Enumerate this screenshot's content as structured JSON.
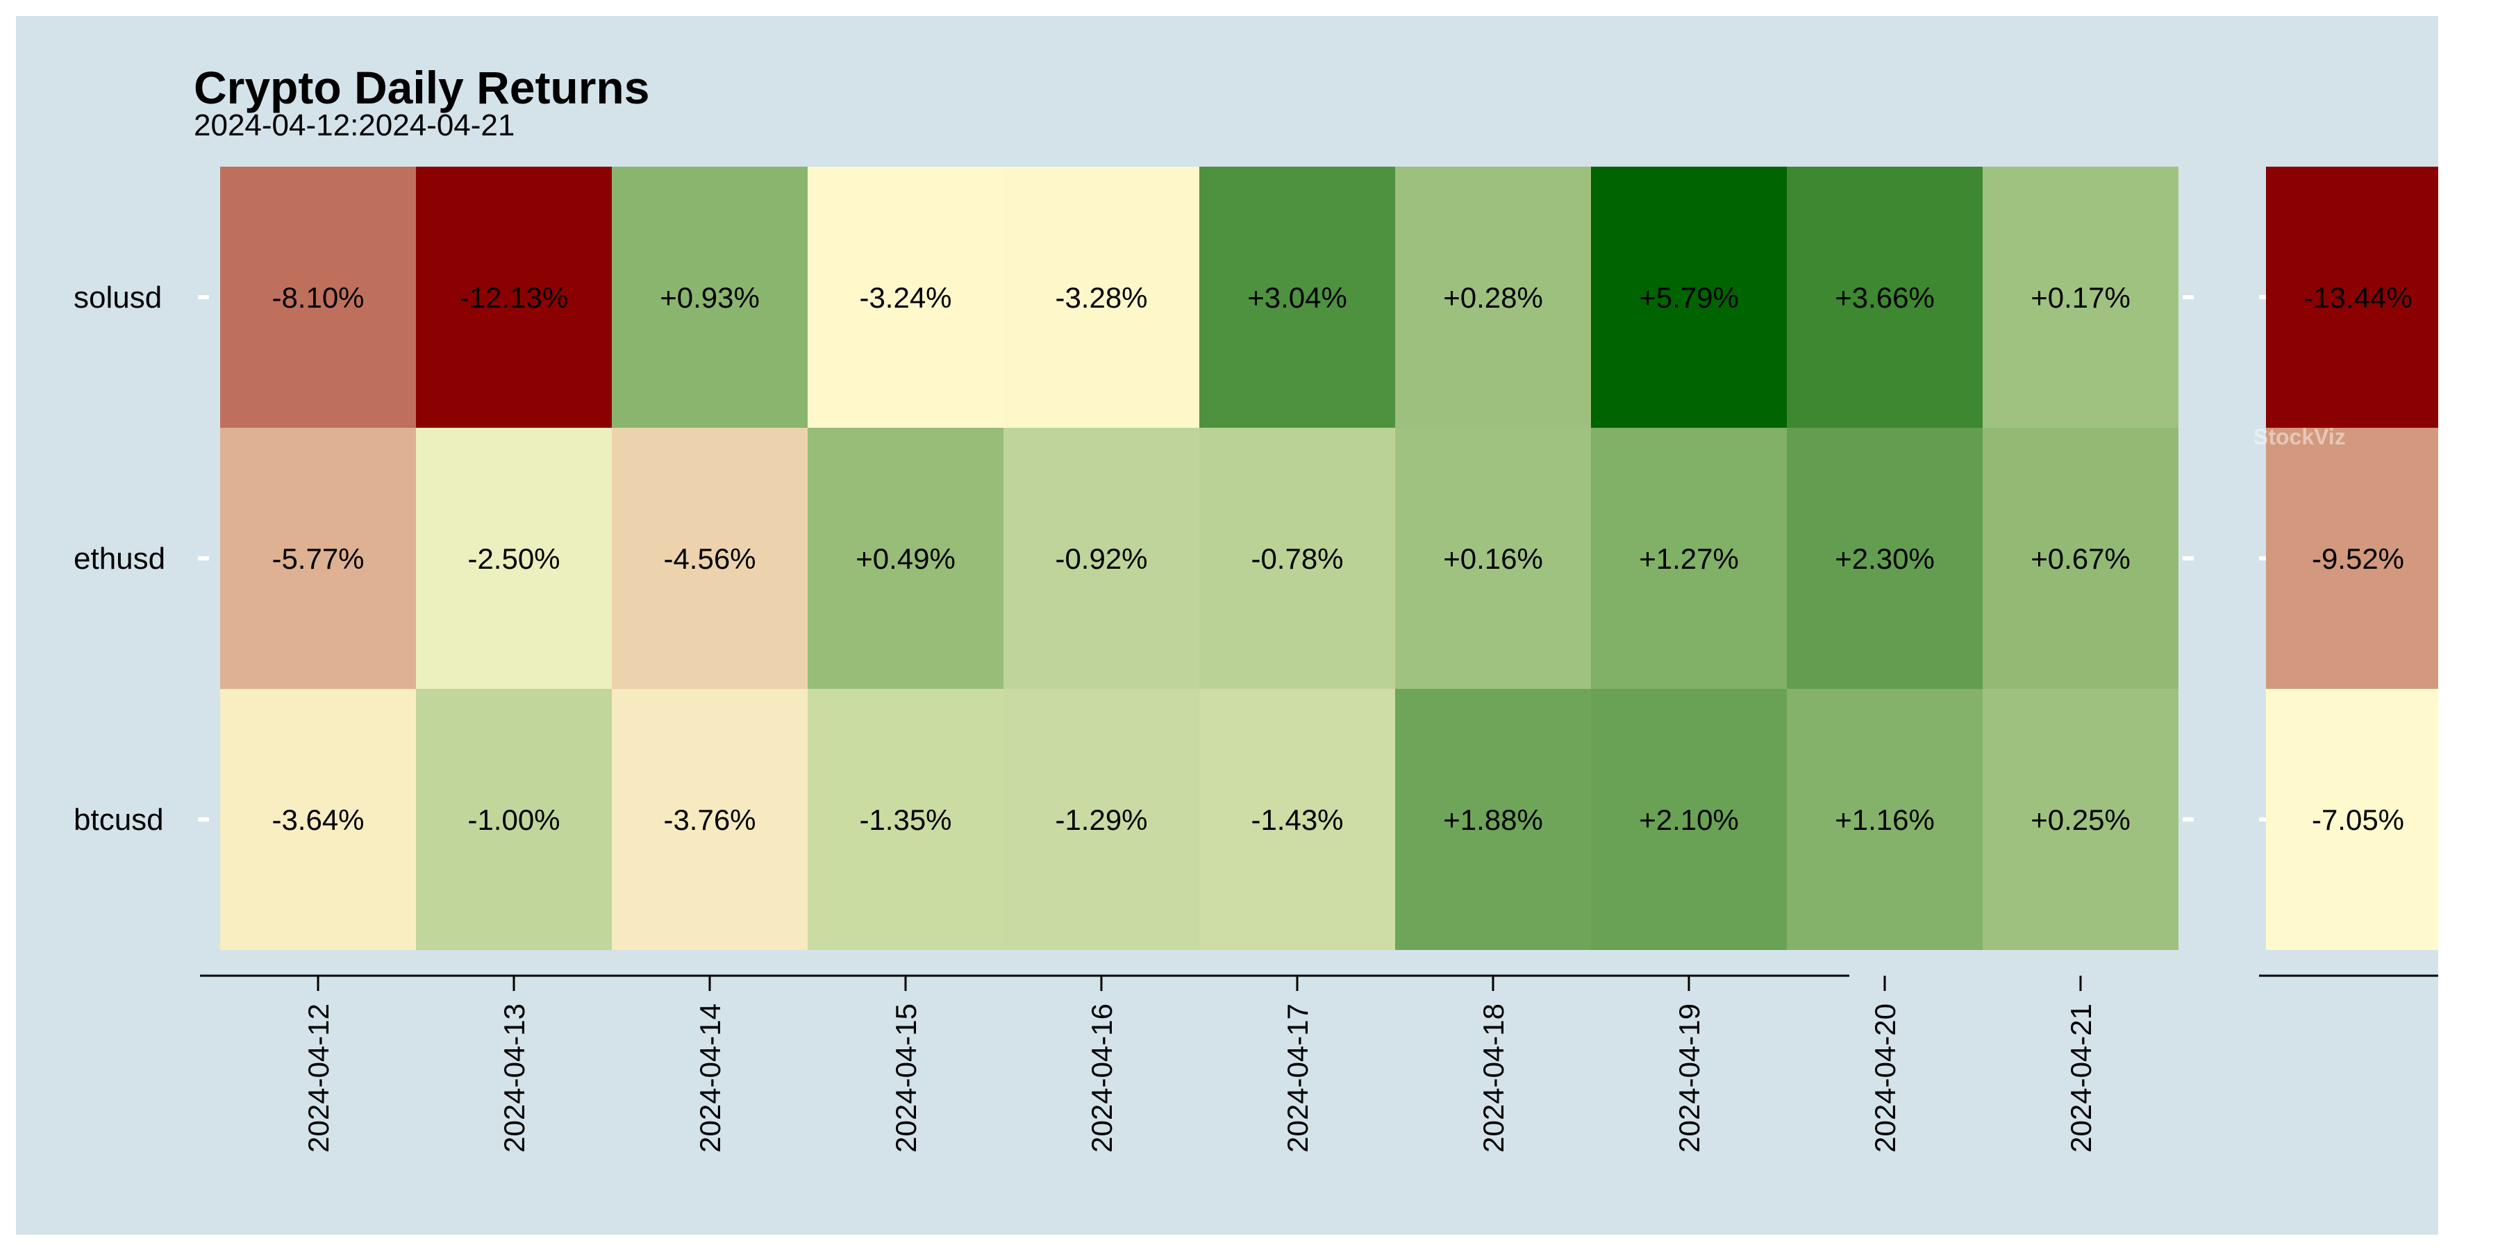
{
  "chart_data": {
    "type": "heatmap",
    "title": "Crypto Daily Returns",
    "subtitle": "2024-04-12:2024-04-21",
    "watermark": "StockViz",
    "x": [
      "2024-04-12",
      "2024-04-13",
      "2024-04-14",
      "2024-04-15",
      "2024-04-16",
      "2024-04-17",
      "2024-04-18",
      "2024-04-19",
      "2024-04-20",
      "2024-04-21"
    ],
    "y": [
      "solusd",
      "ethusd",
      "btcusd"
    ],
    "values": [
      [
        -8.1,
        -12.13,
        0.93,
        -3.24,
        -3.28,
        3.04,
        0.28,
        5.79,
        3.66,
        0.17
      ],
      [
        -5.77,
        -2.5,
        -4.56,
        0.49,
        -0.92,
        -0.78,
        0.16,
        1.27,
        2.3,
        0.67
      ],
      [
        -3.64,
        -1.0,
        -3.76,
        -1.35,
        -1.29,
        -1.43,
        1.88,
        2.1,
        1.16,
        0.25
      ]
    ],
    "labels": [
      [
        "-8.10%",
        "-12.13%",
        "+0.93%",
        "-3.24%",
        "-3.28%",
        "+3.04%",
        "+0.28%",
        "+5.79%",
        "+3.66%",
        "+0.17%"
      ],
      [
        "-5.77%",
        "-2.50%",
        "-4.56%",
        "+0.49%",
        "-0.92%",
        "-0.78%",
        "+0.16%",
        "+1.27%",
        "+2.30%",
        "+0.67%"
      ],
      [
        "-3.64%",
        "-1.00%",
        "-3.76%",
        "-1.35%",
        "-1.29%",
        "-1.43%",
        "+1.88%",
        "+2.10%",
        "+1.16%",
        "+0.25%"
      ]
    ],
    "totals": {
      "values": [
        -13.44,
        -9.52,
        -7.05
      ],
      "labels": [
        "-13.44%",
        "-9.52%",
        "-7.05%"
      ]
    },
    "colors": {
      "neg_max": "#8b0000",
      "neutral": "#fffacd",
      "pos_max": "#006400",
      "background": "#d4e3ea",
      "text": "#000000"
    },
    "grid": false
  }
}
